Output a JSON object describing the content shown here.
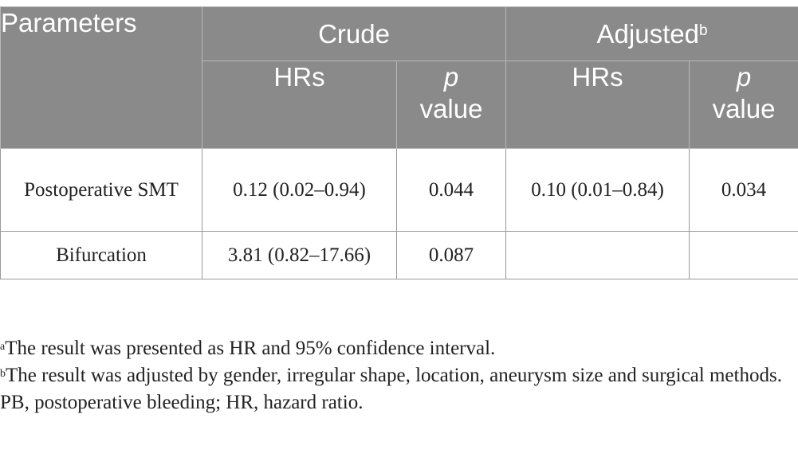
{
  "table": {
    "header": {
      "parameters": "Parameters",
      "crude": "Crude",
      "adjusted": "Adjusted",
      "adjusted_sup": "b",
      "hrs": "HRs",
      "p_italic": "p",
      "p_value": "value"
    },
    "rows": [
      {
        "parameter": "Postoperative SMT",
        "crude_hr": "0.12 (0.02–0.94)",
        "crude_p": "0.044",
        "adj_hr": "0.10 (0.01–0.84)",
        "adj_p": "0.034"
      },
      {
        "parameter": "Bifurcation",
        "crude_hr": "3.81 (0.82–17.66)",
        "crude_p": "0.087",
        "adj_hr": "",
        "adj_p": ""
      }
    ]
  },
  "footnotes": [
    {
      "marker": "a",
      "text": "The result was presented as HR and 95% confidence interval."
    },
    {
      "marker": "b",
      "text": "The result was adjusted by gender, irregular shape, location, aneurysm size and surgical methods."
    },
    {
      "marker": "",
      "text": "PB, postoperative bleeding; HR, hazard ratio."
    }
  ]
}
